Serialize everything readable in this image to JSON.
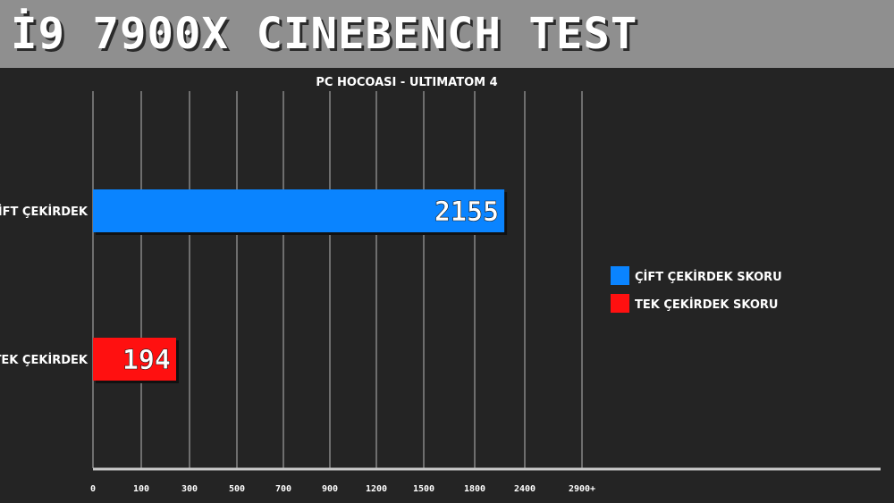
{
  "header": {
    "title": "İ9 7900X CINEBENCH TEST"
  },
  "chart_data": {
    "type": "bar",
    "title": "PC HOCOASI - ULTIMATOM 4",
    "categories": [
      "ÇİFT ÇEKİRDEK",
      "TEK ÇEKİRDEK"
    ],
    "series": [
      {
        "name": "ÇİFT ÇEKİRDEK SKORU",
        "values": [
          2155,
          null
        ],
        "color": "#0a84ff"
      },
      {
        "name": "TEK ÇEKİRDEK SKORU",
        "values": [
          null,
          194
        ],
        "color": "#ff1010"
      }
    ],
    "data_labels": [
      "2155",
      "194"
    ],
    "xticks": [
      "0",
      "100",
      "300",
      "500",
      "700",
      "900",
      "1200",
      "1500",
      "1800",
      "2400",
      "2900+"
    ],
    "grid": true,
    "legend": "right",
    "orientation": "horizontal",
    "colors": {
      "background": "#242424",
      "header": "#8f8f8f",
      "grid": "#b8b8b8",
      "text": "#ffffff"
    }
  }
}
